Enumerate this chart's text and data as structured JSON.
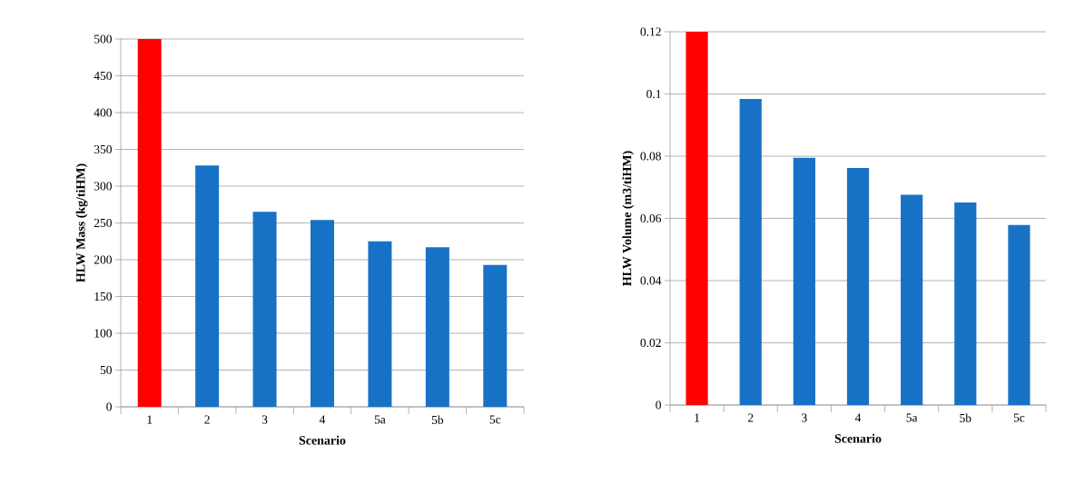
{
  "chart_data": [
    {
      "type": "bar",
      "xlabel": "Scenario",
      "ylabel": "HLW Mass (kg/tiHM)",
      "categories": [
        "1",
        "2",
        "3",
        "4",
        "5a",
        "5b",
        "5c"
      ],
      "values": [
        500,
        328,
        265,
        254,
        225,
        217,
        193
      ],
      "colors": [
        "#ff0000",
        "#1772c6",
        "#1772c6",
        "#1772c6",
        "#1772c6",
        "#1772c6",
        "#1772c6"
      ],
      "ylim": [
        0,
        500
      ],
      "yticks": [
        0,
        50,
        100,
        150,
        200,
        250,
        300,
        350,
        400,
        450,
        500
      ],
      "grid": "y"
    },
    {
      "type": "bar",
      "xlabel": "Scenario",
      "ylabel": "HLW Volume (m3/tiHM)",
      "categories": [
        "1",
        "2",
        "3",
        "4",
        "5a",
        "5b",
        "5c"
      ],
      "values": [
        0.12,
        0.0984,
        0.0795,
        0.0762,
        0.0676,
        0.0651,
        0.0579
      ],
      "colors": [
        "#ff0000",
        "#1772c6",
        "#1772c6",
        "#1772c6",
        "#1772c6",
        "#1772c6",
        "#1772c6"
      ],
      "ylim": [
        0,
        0.12
      ],
      "yticks": [
        0,
        0.02,
        0.04,
        0.06,
        0.08,
        0.1,
        0.12
      ],
      "grid": "y"
    }
  ]
}
